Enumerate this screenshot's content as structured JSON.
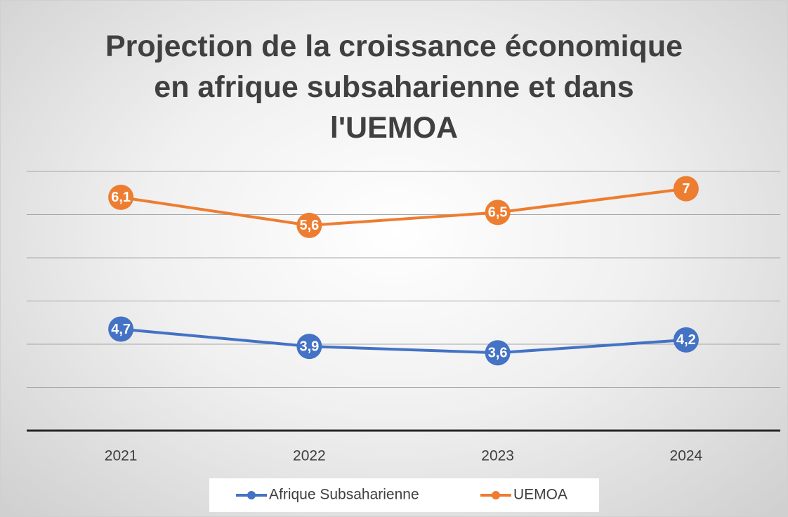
{
  "chart_data": {
    "type": "line",
    "stacked": true,
    "title": "Projection de la croissance économique\nen afrique subsaharienne et dans\nl'UEMOA",
    "categories": [
      "2021",
      "2022",
      "2023",
      "2024"
    ],
    "series": [
      {
        "name": "Afrique Subsaharienne",
        "color": "#4472c4",
        "values": [
          4.7,
          3.9,
          3.6,
          4.2
        ],
        "value_labels": [
          "4,7",
          "3,9",
          "3,6",
          "4,2"
        ]
      },
      {
        "name": "UEMOA",
        "color": "#ed7d31",
        "values": [
          6.1,
          5.6,
          6.5,
          7
        ],
        "value_labels": [
          "6,1",
          "5,6",
          "6,5",
          "7"
        ]
      }
    ],
    "ylim": [
      0,
      12
    ],
    "yticks": [
      0,
      2,
      4,
      6,
      8,
      10,
      12
    ],
    "grid": true,
    "legend": "bottom"
  }
}
